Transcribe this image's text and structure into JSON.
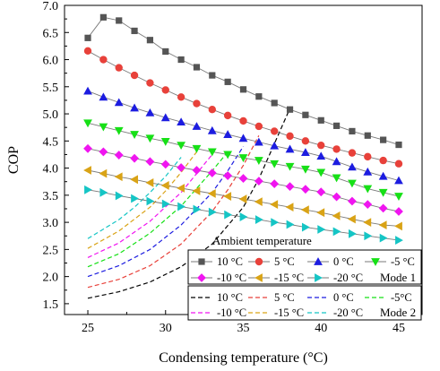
{
  "chart_data": {
    "type": "line",
    "title": "",
    "xlabel": "Condensing temperature (°C)",
    "ylabel": "COP",
    "xlim": [
      23.5,
      46.5
    ],
    "ylim": [
      1.3,
      7.0
    ],
    "xticks": [
      25,
      30,
      35,
      40,
      45
    ],
    "yticks": [
      1.5,
      2.0,
      2.5,
      3.0,
      3.5,
      4.0,
      4.5,
      5.0,
      5.5,
      6.0,
      6.5,
      7.0
    ],
    "xtick_labels": [
      "25",
      "30",
      "35",
      "40",
      "45"
    ],
    "ytick_labels": [
      "1.5",
      "2.0",
      "2.5",
      "3.0",
      "3.5",
      "4.0",
      "4.5",
      "5.0",
      "5.5",
      "6.0",
      "6.5",
      "7.0"
    ],
    "grid": false,
    "legend": {
      "placement": "bottom-right",
      "title": "Ambient temperature",
      "mode1_label": "Mode 1",
      "mode2_label": "Mode 2"
    },
    "mode1_series": [
      {
        "name": "10 °C",
        "color": "#555555",
        "marker": "square",
        "x": [
          25,
          26,
          27,
          28,
          29,
          30,
          31,
          32,
          33,
          34,
          35,
          36,
          37,
          38,
          39,
          40,
          41,
          42,
          43,
          44,
          45
        ],
        "y": [
          6.4,
          6.78,
          6.72,
          6.53,
          6.36,
          6.15,
          6.0,
          5.86,
          5.71,
          5.59,
          5.45,
          5.32,
          5.2,
          5.08,
          4.98,
          4.88,
          4.78,
          4.68,
          4.6,
          4.52,
          4.43
        ]
      },
      {
        "name": "5 °C",
        "color": "#e8413a",
        "marker": "circle",
        "x": [
          25,
          26,
          27,
          28,
          29,
          30,
          31,
          32,
          33,
          34,
          35,
          36,
          37,
          38,
          39,
          40,
          41,
          42,
          43,
          44,
          45
        ],
        "y": [
          6.16,
          6.0,
          5.85,
          5.71,
          5.57,
          5.44,
          5.31,
          5.19,
          5.08,
          4.97,
          4.87,
          4.77,
          4.68,
          4.59,
          4.5,
          4.42,
          4.35,
          4.28,
          4.21,
          4.14,
          4.08
        ]
      },
      {
        "name": "0 °C",
        "color": "#1c1ce0",
        "marker": "triangle-up",
        "x": [
          25,
          26,
          27,
          28,
          29,
          30,
          31,
          32,
          33,
          34,
          35,
          36,
          37,
          38,
          39,
          40,
          41,
          42,
          43,
          44,
          45
        ],
        "y": [
          5.42,
          5.31,
          5.21,
          5.11,
          5.02,
          4.93,
          4.85,
          4.77,
          4.69,
          4.62,
          4.55,
          4.48,
          4.41,
          4.35,
          4.29,
          4.22,
          4.12,
          4.02,
          3.93,
          3.85,
          3.77
        ]
      },
      {
        "name": "-5 °C",
        "color": "#16e016",
        "marker": "triangle-down",
        "x": [
          25,
          26,
          27,
          28,
          29,
          30,
          31,
          32,
          33,
          34,
          35,
          36,
          37,
          38,
          39,
          40,
          41,
          42,
          43,
          44,
          45
        ],
        "y": [
          4.83,
          4.76,
          4.69,
          4.62,
          4.55,
          4.49,
          4.42,
          4.36,
          4.3,
          4.25,
          4.19,
          4.14,
          4.08,
          4.03,
          3.98,
          3.92,
          3.82,
          3.72,
          3.62,
          3.55,
          3.48
        ]
      },
      {
        "name": "-10 °C",
        "color": "#f015f0",
        "marker": "diamond",
        "x": [
          25,
          26,
          27,
          28,
          29,
          30,
          31,
          32,
          33,
          34,
          35,
          36,
          37,
          38,
          39,
          40,
          41,
          42,
          43,
          44,
          45
        ],
        "y": [
          4.36,
          4.3,
          4.24,
          4.18,
          4.12,
          4.07,
          4.01,
          3.96,
          3.91,
          3.86,
          3.81,
          3.76,
          3.71,
          3.66,
          3.61,
          3.56,
          3.47,
          3.39,
          3.33,
          3.26,
          3.2
        ]
      },
      {
        "name": "-15 °C",
        "color": "#d9a316",
        "marker": "triangle-left",
        "x": [
          25,
          26,
          27,
          28,
          29,
          30,
          31,
          32,
          33,
          34,
          35,
          36,
          37,
          38,
          39,
          40,
          41,
          42,
          43,
          44,
          45
        ],
        "y": [
          3.96,
          3.9,
          3.84,
          3.79,
          3.73,
          3.68,
          3.63,
          3.58,
          3.53,
          3.48,
          3.43,
          3.38,
          3.33,
          3.28,
          3.23,
          3.18,
          3.12,
          3.06,
          3.0,
          2.95,
          2.93
        ]
      },
      {
        "name": "-20 °C",
        "color": "#15c5c5",
        "marker": "triangle-right",
        "x": [
          25,
          26,
          27,
          28,
          29,
          30,
          31,
          32,
          33,
          34,
          35,
          36,
          37,
          38,
          39,
          40,
          41,
          42,
          43,
          44,
          45
        ],
        "y": [
          3.6,
          3.55,
          3.49,
          3.44,
          3.39,
          3.34,
          3.29,
          3.24,
          3.19,
          3.14,
          3.1,
          3.05,
          3.0,
          2.96,
          2.91,
          2.87,
          2.83,
          2.79,
          2.75,
          2.71,
          2.67
        ]
      }
    ],
    "mode2_series": [
      {
        "name": "10 °C",
        "color": "#000000",
        "x": [
          25,
          27,
          29,
          31,
          33,
          35,
          36,
          37,
          38
        ],
        "y": [
          1.6,
          1.72,
          1.9,
          2.18,
          2.6,
          3.28,
          3.8,
          4.45,
          5.1
        ]
      },
      {
        "name": "5 °C",
        "color": "#e8413a",
        "x": [
          25,
          27,
          29,
          31,
          33,
          34,
          35,
          36
        ],
        "y": [
          1.8,
          1.95,
          2.2,
          2.6,
          3.2,
          3.6,
          4.05,
          4.6
        ]
      },
      {
        "name": "0 °C",
        "color": "#1c1ce0",
        "x": [
          25,
          27,
          29,
          31,
          33,
          34,
          35
        ],
        "y": [
          2.0,
          2.2,
          2.5,
          2.95,
          3.55,
          3.95,
          4.4
        ]
      },
      {
        "name": "-5°C",
        "color": "#16e016",
        "x": [
          25,
          27,
          29,
          31,
          33,
          34
        ],
        "y": [
          2.18,
          2.42,
          2.8,
          3.3,
          3.95,
          4.3
        ]
      },
      {
        "name": "-10 °C",
        "color": "#f015f0",
        "x": [
          25,
          27,
          29,
          31,
          32,
          33
        ],
        "y": [
          2.35,
          2.62,
          3.02,
          3.55,
          3.9,
          4.25
        ]
      },
      {
        "name": "-15 °C",
        "color": "#d9a316",
        "x": [
          25,
          27,
          29,
          30,
          31,
          32
        ],
        "y": [
          2.52,
          2.84,
          3.28,
          3.58,
          3.92,
          4.3
        ]
      },
      {
        "name": "-20 °C",
        "color": "#15c5c5",
        "x": [
          25,
          27,
          28,
          29,
          30,
          31
        ],
        "y": [
          2.7,
          3.05,
          3.28,
          3.55,
          3.85,
          4.2
        ]
      }
    ]
  }
}
